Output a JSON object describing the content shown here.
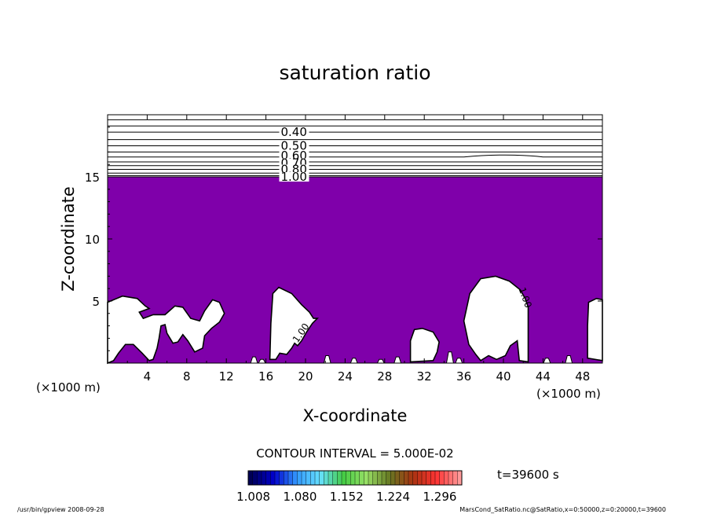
{
  "chart_data": {
    "type": "contour",
    "title": "saturation ratio",
    "xlabel": "X-coordinate",
    "ylabel": "Z-coordinate",
    "x_unit": "(×1000 m)",
    "y_unit": "(×1000 m)",
    "xlim": [
      0,
      50
    ],
    "ylim": [
      0,
      20
    ],
    "x_ticks": [
      "4",
      "8",
      "12",
      "16",
      "20",
      "24",
      "28",
      "32",
      "36",
      "40",
      "44",
      "48"
    ],
    "y_ticks": [
      "5",
      "10",
      "15"
    ],
    "contour_interval_label": "CONTOUR INTERVAL = 5.000E-02",
    "contour_labels": [
      {
        "text": "0.40",
        "x": 17.5,
        "z": 18.6
      },
      {
        "text": "0.50",
        "x": 17.5,
        "z": 17.5
      },
      {
        "text": "0.60",
        "x": 17.5,
        "z": 16.7
      },
      {
        "text": "0.70",
        "x": 17.5,
        "z": 16.1
      },
      {
        "text": "0.80",
        "x": 17.5,
        "z": 15.6
      },
      {
        "text": "1.00",
        "x": 17.5,
        "z": 15.0
      },
      {
        "text": "1.00",
        "x": 19.8,
        "z": 2.6
      },
      {
        "text": "1.00",
        "x": 41.9,
        "z": 5.5
      }
    ],
    "contour_levels_z": [
      19.6,
      19.1,
      18.6,
      18.0,
      17.5,
      17.0,
      16.6,
      16.2,
      15.9,
      15.6,
      15.3,
      15.1,
      15.0
    ],
    "shaded_threshold": 1.0,
    "shade_color": "#7f00aa",
    "supersaturated_top_z": 15.0,
    "clear_regions": [
      {
        "name": "bump-left",
        "x_range": [
          0.0,
          11.8
        ],
        "z_max": 5.4
      },
      {
        "name": "tower-17",
        "x_range": [
          16.4,
          21.2
        ],
        "z_max": 6.1
      },
      {
        "name": "bump-31",
        "x_range": [
          30.6,
          33.5
        ],
        "z_max": 2.8
      },
      {
        "name": "dome-40",
        "x_range": [
          36.0,
          42.5
        ],
        "z_max": 7.0
      },
      {
        "name": "edge-48",
        "x_range": [
          48.4,
          50.0
        ],
        "z_max": 5.2
      }
    ],
    "colorbar": {
      "tick_labels": [
        "1.008",
        "1.080",
        "1.152",
        "1.224",
        "1.296"
      ],
      "range": [
        1.0,
        1.33
      ],
      "colors": [
        "#000055",
        "#0000cc",
        "#3399ff",
        "#66e0ff",
        "#44cc44",
        "#99e066",
        "#667722",
        "#aa3311",
        "#ff3333",
        "#ff9999"
      ]
    },
    "time_label": "t=39600 s"
  },
  "footer": {
    "left": "/usr/bin/gpview   2008-09-28",
    "right": "MarsCond_SatRatio.nc@SatRatio,x=0:50000,z=0:20000,t=39600"
  }
}
